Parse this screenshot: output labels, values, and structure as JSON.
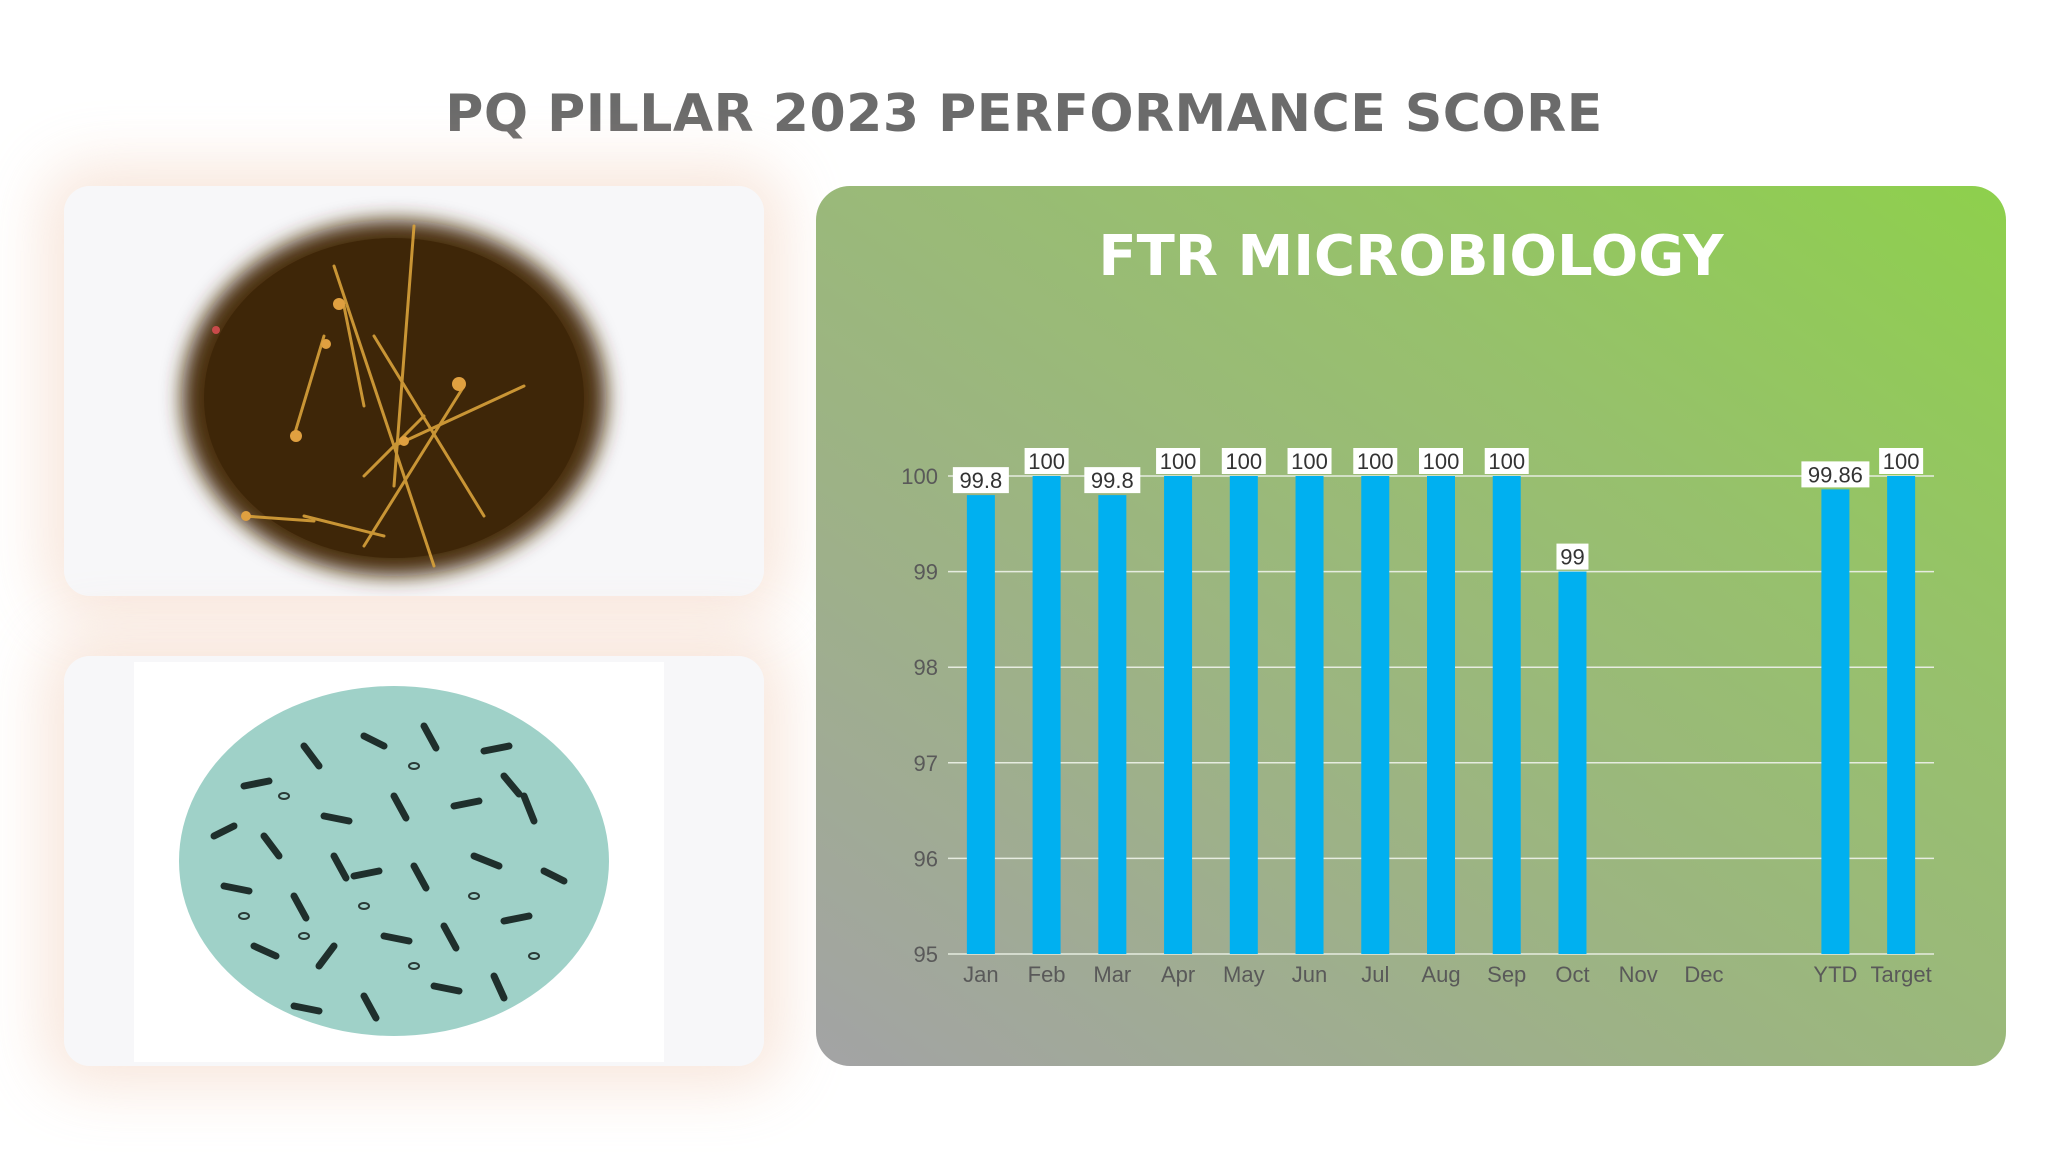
{
  "page_title": "PQ PILLAR 2023 PERFORMANCE SCORE",
  "images": {
    "top": "fungal-hyphae-micrograph",
    "bottom": "rod-bacteria-micrograph"
  },
  "chart_data": {
    "type": "bar",
    "title": "FTR MICROBIOLOGY",
    "xlabel": "",
    "ylabel": "",
    "categories": [
      "Jan",
      "Feb",
      "Mar",
      "Apr",
      "May",
      "Jun",
      "Jul",
      "Aug",
      "Sep",
      "Oct",
      "Nov",
      "Dec",
      "",
      "YTD",
      "Target"
    ],
    "values": [
      99.8,
      100,
      99.8,
      100,
      100,
      100,
      100,
      100,
      100,
      99,
      null,
      null,
      null,
      99.86,
      100
    ],
    "data_labels": [
      "99.8",
      "100",
      "99.8",
      "100",
      "100",
      "100",
      "100",
      "100",
      "100",
      "99",
      "",
      "",
      "",
      "99.86",
      "100"
    ],
    "ylim": [
      95,
      100
    ],
    "yticks": [
      95,
      96,
      97,
      98,
      99,
      100
    ],
    "grid": true,
    "legend": "none",
    "colors": {
      "bar": "#00b0f0",
      "grid": "#e6ece0",
      "axis_text": "#595959",
      "label_bg": "#ffffff"
    }
  }
}
